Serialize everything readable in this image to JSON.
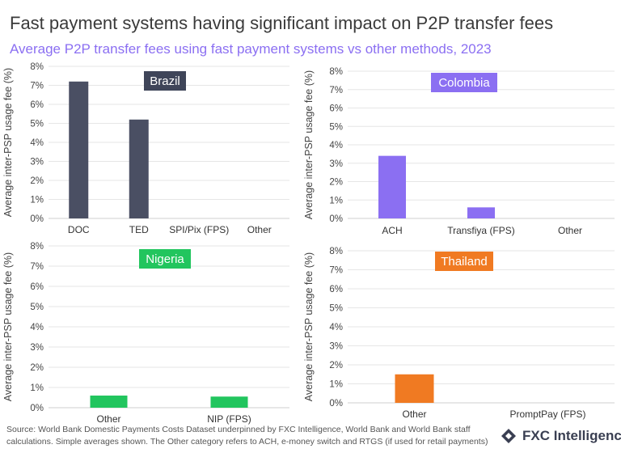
{
  "header": {
    "title": "Fast payment systems having significant impact on P2P transfer fees",
    "subtitle": "Average P2P transfer fees using fast payment systems vs other methods, 2023"
  },
  "chart_data": [
    {
      "type": "bar",
      "title": "Brazil",
      "title_color": "#3f4559",
      "bar_color": "#4a4f63",
      "categories": [
        "DOC",
        "TED",
        "SPI/Pix (FPS)",
        "Other"
      ],
      "values": [
        7.2,
        5.2,
        0,
        0
      ],
      "ylabel": "Average inter-PSP usage fee (%)",
      "ylim": [
        0,
        8
      ],
      "yticks": [
        "0%",
        "1%",
        "2%",
        "3%",
        "4%",
        "5%",
        "6%",
        "7%",
        "8%"
      ],
      "grid": true
    },
    {
      "type": "bar",
      "title": "Colombia",
      "title_color": "#8b6ff2",
      "bar_color": "#8b6ff2",
      "categories": [
        "ACH",
        "Transfiya (FPS)",
        "Other"
      ],
      "values": [
        3.4,
        0.6,
        0
      ],
      "ylabel": "Average inter-PSP usage fee (%)",
      "ylim": [
        0,
        8
      ],
      "yticks": [
        "0%",
        "1%",
        "2%",
        "3%",
        "4%",
        "5%",
        "6%",
        "7%",
        "8%"
      ],
      "grid": true
    },
    {
      "type": "bar",
      "title": "Nigeria",
      "title_color": "#22c55e",
      "bar_color": "#22c55e",
      "categories": [
        "Other",
        "NIP (FPS)"
      ],
      "values": [
        0.6,
        0.55
      ],
      "ylabel": "Average inter-PSP usage fee (%)",
      "ylim": [
        0,
        8
      ],
      "yticks": [
        "0%",
        "1%",
        "2%",
        "3%",
        "4%",
        "5%",
        "6%",
        "7%",
        "8%"
      ],
      "grid": true
    },
    {
      "type": "bar",
      "title": "Thailand",
      "title_color": "#f07a22",
      "bar_color": "#f07a22",
      "categories": [
        "Other",
        "PromptPay (FPS)"
      ],
      "values": [
        1.5,
        0
      ],
      "ylabel": "Average inter-PSP usage fee (%)",
      "ylim": [
        0,
        8
      ],
      "yticks": [
        "0%",
        "1%",
        "2%",
        "3%",
        "4%",
        "5%",
        "6%",
        "7%",
        "8%"
      ],
      "grid": true
    }
  ],
  "footer": {
    "source": "Source: World Bank Domestic Payments Costs Dataset underpinned by FXC Intelligence, World Bank and World Bank staff calculations. Simple averages shown. The Other category refers to ACH, e-money switch and RTGS (if used for retail payments)",
    "logo_text": "FXC Intelligence",
    "logo_icon": "fxc-logo-icon"
  }
}
